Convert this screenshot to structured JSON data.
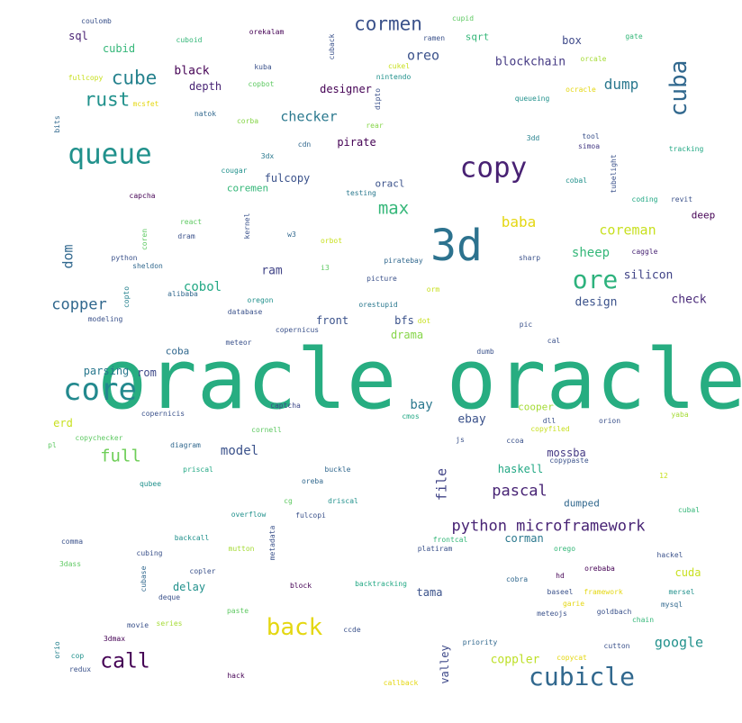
{
  "palette": {
    "dark_purple": "#440154",
    "indigo": "#3b528b",
    "blue": "#31688e",
    "teal": "#21918c",
    "green": "#35b779",
    "lime": "#90d743",
    "yellow": "#e4d712"
  },
  "words": [
    {
      "text": "oracle oracle",
      "color": "#27ad81"
    },
    {
      "text": "3d",
      "color": "#2c728e"
    },
    {
      "text": "copy",
      "color": "#482173"
    },
    {
      "text": "queue",
      "color": "#21918c"
    },
    {
      "text": "core",
      "color": "#23898e"
    },
    {
      "text": "cubicle",
      "color": "#31688e"
    },
    {
      "text": "cuba",
      "color": "#31688e"
    },
    {
      "text": "ore",
      "color": "#2db27d"
    },
    {
      "text": "back",
      "color": "#e4d712"
    },
    {
      "text": "cormen",
      "color": "#3b528b"
    },
    {
      "text": "cube",
      "color": "#26828e"
    },
    {
      "text": "rust",
      "color": "#21918c"
    },
    {
      "text": "call",
      "color": "#440154"
    },
    {
      "text": "python microframework",
      "color": "#482475"
    },
    {
      "text": "max",
      "color": "#35b779"
    },
    {
      "text": "full",
      "color": "#6ece58"
    },
    {
      "text": "copper",
      "color": "#31688e"
    },
    {
      "text": "checker",
      "color": "#2a788e"
    },
    {
      "text": "pascal",
      "color": "#482475"
    },
    {
      "text": "oreo",
      "color": "#3b528b"
    },
    {
      "text": "dump",
      "color": "#2a788e"
    },
    {
      "text": "google",
      "color": "#21918c"
    },
    {
      "text": "coreman",
      "color": "#c8e020"
    },
    {
      "text": "baba",
      "color": "#e4d712"
    },
    {
      "text": "sheep",
      "color": "#35b779"
    },
    {
      "text": "blockchain",
      "color": "#443983"
    },
    {
      "text": "model",
      "color": "#3b528b"
    },
    {
      "text": "cobol",
      "color": "#22a884"
    },
    {
      "text": "dom",
      "color": "#31688e"
    },
    {
      "text": "file",
      "color": "#414487"
    },
    {
      "text": "design",
      "color": "#3b528b"
    },
    {
      "text": "silicon",
      "color": "#414487"
    },
    {
      "text": "check",
      "color": "#482878"
    },
    {
      "text": "bay",
      "color": "#2a788e"
    },
    {
      "text": "ebay",
      "color": "#3b528b"
    },
    {
      "text": "mossba",
      "color": "#443983"
    },
    {
      "text": "haskell",
      "color": "#22a884"
    },
    {
      "text": "coppler",
      "color": "#bddf26"
    },
    {
      "text": "cuda",
      "color": "#c8e020"
    },
    {
      "text": "valley",
      "color": "#3e4989"
    },
    {
      "text": "corman",
      "color": "#2a788e"
    },
    {
      "text": "delay",
      "color": "#21918c"
    },
    {
      "text": "tama",
      "color": "#3b528b"
    },
    {
      "text": "front",
      "color": "#3b528b"
    },
    {
      "text": "bfs",
      "color": "#3b528b"
    },
    {
      "text": "drama",
      "color": "#86d549"
    },
    {
      "text": "ram",
      "color": "#414487"
    },
    {
      "text": "pirate",
      "color": "#440154"
    },
    {
      "text": "designer",
      "color": "#440154"
    },
    {
      "text": "depth",
      "color": "#482475"
    },
    {
      "text": "black",
      "color": "#440154"
    },
    {
      "text": "cubid",
      "color": "#35b779"
    },
    {
      "text": "sql",
      "color": "#482173"
    },
    {
      "text": "box",
      "color": "#3e4989"
    },
    {
      "text": "sqrt",
      "color": "#35b779"
    },
    {
      "text": "fulcopy",
      "color": "#3b528b"
    },
    {
      "text": "coremen",
      "color": "#35b779"
    },
    {
      "text": "oracl",
      "color": "#3b528b"
    },
    {
      "text": "erd",
      "color": "#c8e020"
    },
    {
      "text": "rom",
      "color": "#3e4989"
    },
    {
      "text": "parsing",
      "color": "#2a788e"
    },
    {
      "text": "coba",
      "color": "#31688e"
    },
    {
      "text": "deep",
      "color": "#440154"
    },
    {
      "text": "cooper",
      "color": "#a5db36"
    },
    {
      "text": "dumped",
      "color": "#31688e"
    },
    {
      "text": "coulomb",
      "color": "#3b528b"
    },
    {
      "text": "orekalam",
      "color": "#440154"
    },
    {
      "text": "cupid",
      "color": "#5ec962"
    },
    {
      "text": "ramen",
      "color": "#3b528b"
    },
    {
      "text": "gate",
      "color": "#35b779"
    },
    {
      "text": "cuboid",
      "color": "#35b779"
    },
    {
      "text": "cuback",
      "color": "#3b528b"
    },
    {
      "text": "kuba",
      "color": "#3b528b"
    },
    {
      "text": "cukel",
      "color": "#c8e020"
    },
    {
      "text": "nintendo",
      "color": "#21918c"
    },
    {
      "text": "orcale",
      "color": "#a5db36"
    },
    {
      "text": "fullcopy",
      "color": "#c8e020"
    },
    {
      "text": "mcsfet",
      "color": "#e4d712"
    },
    {
      "text": "copbot",
      "color": "#5ec962"
    },
    {
      "text": "dipto",
      "color": "#3b528b"
    },
    {
      "text": "queueing",
      "color": "#21918c"
    },
    {
      "text": "ocracle",
      "color": "#e4d712"
    },
    {
      "text": "natok",
      "color": "#31688e"
    },
    {
      "text": "corba",
      "color": "#86d549"
    },
    {
      "text": "rear",
      "color": "#86d549"
    },
    {
      "text": "bits",
      "color": "#31688e"
    },
    {
      "text": "3dd",
      "color": "#26828e"
    },
    {
      "text": "tool",
      "color": "#3b528b"
    },
    {
      "text": "simoa",
      "color": "#443983"
    },
    {
      "text": "tracking",
      "color": "#22a884"
    },
    {
      "text": "cdn",
      "color": "#31688e"
    },
    {
      "text": "3dx",
      "color": "#2a788e"
    },
    {
      "text": "tubelight",
      "color": "#3b528b"
    },
    {
      "text": "cougar",
      "color": "#21918c"
    },
    {
      "text": "cobal",
      "color": "#21918c"
    },
    {
      "text": "capcha",
      "color": "#440154"
    },
    {
      "text": "testing",
      "color": "#2a788e"
    },
    {
      "text": "coding",
      "color": "#22a884"
    },
    {
      "text": "revit",
      "color": "#3b528b"
    },
    {
      "text": "react",
      "color": "#5ec962"
    },
    {
      "text": "kernel",
      "color": "#3b528b"
    },
    {
      "text": "w3",
      "color": "#31688e"
    },
    {
      "text": "coren",
      "color": "#5ec962"
    },
    {
      "text": "dram",
      "color": "#3b528b"
    },
    {
      "text": "orbot",
      "color": "#c8e020"
    },
    {
      "text": "caggle",
      "color": "#482475"
    },
    {
      "text": "python",
      "color": "#3b528b"
    },
    {
      "text": "sheldon",
      "color": "#31688e"
    },
    {
      "text": "sharp",
      "color": "#3b528b"
    },
    {
      "text": "piratebay",
      "color": "#31688e"
    },
    {
      "text": "i3",
      "color": "#5ec962"
    },
    {
      "text": "picture",
      "color": "#3b528b"
    },
    {
      "text": "orm",
      "color": "#c8e020"
    },
    {
      "text": "alibaba",
      "color": "#31688e"
    },
    {
      "text": "copto",
      "color": "#26828e"
    },
    {
      "text": "oregon",
      "color": "#21918c"
    },
    {
      "text": "orestupid",
      "color": "#2a788e"
    },
    {
      "text": "database",
      "color": "#3b528b"
    },
    {
      "text": "modeling",
      "color": "#3b528b"
    },
    {
      "text": "copernicus",
      "color": "#3b528b"
    },
    {
      "text": "dot",
      "color": "#c8e020"
    },
    {
      "text": "pic",
      "color": "#3b528b"
    },
    {
      "text": "meteor",
      "color": "#3b528b"
    },
    {
      "text": "dumb",
      "color": "#3b528b"
    },
    {
      "text": "cal",
      "color": "#3b528b"
    },
    {
      "text": "captcha",
      "color": "#3e4989"
    },
    {
      "text": "copernicis",
      "color": "#3b528b"
    },
    {
      "text": "cmos",
      "color": "#22a884"
    },
    {
      "text": "dll",
      "color": "#3b528b"
    },
    {
      "text": "orion",
      "color": "#3b528b"
    },
    {
      "text": "yaba",
      "color": "#a5db36"
    },
    {
      "text": "cornell",
      "color": "#5ec962"
    },
    {
      "text": "copyfiled",
      "color": "#c8e020"
    },
    {
      "text": "js",
      "color": "#3b528b"
    },
    {
      "text": "ccoa",
      "color": "#3b528b"
    },
    {
      "text": "pl",
      "color": "#5ec962"
    },
    {
      "text": "copychecker",
      "color": "#5ec962"
    },
    {
      "text": "diagram",
      "color": "#31688e"
    },
    {
      "text": "priscal",
      "color": "#22a884"
    },
    {
      "text": "buckle",
      "color": "#31688e"
    },
    {
      "text": "oreba",
      "color": "#31688e"
    },
    {
      "text": "copypaste",
      "color": "#3b528b"
    },
    {
      "text": "12",
      "color": "#c8e020"
    },
    {
      "text": "qubee",
      "color": "#21918c"
    },
    {
      "text": "cg",
      "color": "#5ec962"
    },
    {
      "text": "driscal",
      "color": "#21918c"
    },
    {
      "text": "cubal",
      "color": "#35b779"
    },
    {
      "text": "overflow",
      "color": "#21918c"
    },
    {
      "text": "fulcopi",
      "color": "#3b528b"
    },
    {
      "text": "backcall",
      "color": "#21918c"
    },
    {
      "text": "metadata",
      "color": "#3b528b"
    },
    {
      "text": "frontcal",
      "color": "#35b779"
    },
    {
      "text": "comma",
      "color": "#3b528b"
    },
    {
      "text": "mutton",
      "color": "#a5db36"
    },
    {
      "text": "platiram",
      "color": "#3b528b"
    },
    {
      "text": "orego",
      "color": "#35b779"
    },
    {
      "text": "hackel",
      "color": "#3b528b"
    },
    {
      "text": "3dass",
      "color": "#5ec962"
    },
    {
      "text": "cubing",
      "color": "#3b528b"
    },
    {
      "text": "cubase",
      "color": "#31688e"
    },
    {
      "text": "copler",
      "color": "#3b528b"
    },
    {
      "text": "cobra",
      "color": "#31688e"
    },
    {
      "text": "hd",
      "color": "#440154"
    },
    {
      "text": "orebaba",
      "color": "#440154"
    },
    {
      "text": "deque",
      "color": "#3b528b"
    },
    {
      "text": "block",
      "color": "#440154"
    },
    {
      "text": "backtracking",
      "color": "#22a884"
    },
    {
      "text": "baseel",
      "color": "#3b528b"
    },
    {
      "text": "framework",
      "color": "#e4d712"
    },
    {
      "text": "mersel",
      "color": "#21918c"
    },
    {
      "text": "garie",
      "color": "#e4d712"
    },
    {
      "text": "mysql",
      "color": "#31688e"
    },
    {
      "text": "paste",
      "color": "#5ec962"
    },
    {
      "text": "movie",
      "color": "#3b528b"
    },
    {
      "text": "series",
      "color": "#a5db36"
    },
    {
      "text": "meteojs",
      "color": "#3b528b"
    },
    {
      "text": "goldbach",
      "color": "#3b528b"
    },
    {
      "text": "chain",
      "color": "#35b779"
    },
    {
      "text": "3dmax",
      "color": "#440154"
    },
    {
      "text": "ccde",
      "color": "#3b528b"
    },
    {
      "text": "priority",
      "color": "#31688e"
    },
    {
      "text": "cutton",
      "color": "#3b528b"
    },
    {
      "text": "orio",
      "color": "#26828e"
    },
    {
      "text": "cop",
      "color": "#21918c"
    },
    {
      "text": "redux",
      "color": "#3b528b"
    },
    {
      "text": "copycat",
      "color": "#e4d712"
    },
    {
      "text": "hack",
      "color": "#440154"
    },
    {
      "text": "callback",
      "color": "#e4d712"
    }
  ]
}
